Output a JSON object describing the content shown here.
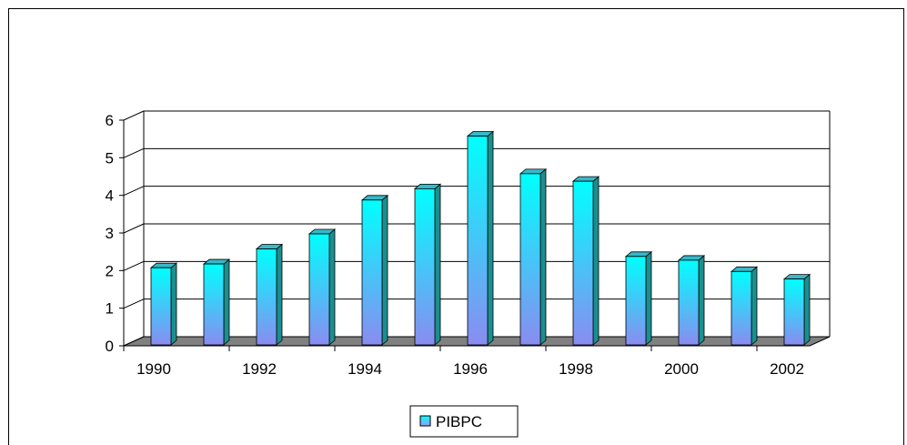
{
  "chart_data": {
    "type": "bar",
    "categories": [
      "1990",
      "1991",
      "1992",
      "1993",
      "1994",
      "1995",
      "1996",
      "1997",
      "1998",
      "1999",
      "2000",
      "2001",
      "2002"
    ],
    "x_tick_labels": [
      "1990",
      "1992",
      "1994",
      "1996",
      "1998",
      "2000",
      "2002"
    ],
    "series": [
      {
        "name": "PIBPC",
        "values": [
          2.1,
          2.2,
          2.6,
          3.0,
          3.9,
          4.2,
          5.6,
          4.6,
          4.4,
          2.4,
          2.3,
          2.0,
          1.8
        ]
      }
    ],
    "ylim": [
      0,
      6
    ],
    "y_ticks": [
      0,
      1,
      2,
      3,
      4,
      5,
      6
    ],
    "grid": true,
    "three_d": true,
    "legend_position": "bottom",
    "colors": {
      "bar_top": "#00ffff",
      "bar_bottom": "#8a8cf0",
      "bar_side": "#1b8f8f",
      "bar_cap": "#38b8c8",
      "floor": "#808080",
      "grid": "#000000",
      "legend_swatch_top": "#00ffff",
      "legend_swatch_bottom": "#9a9cf4"
    }
  }
}
